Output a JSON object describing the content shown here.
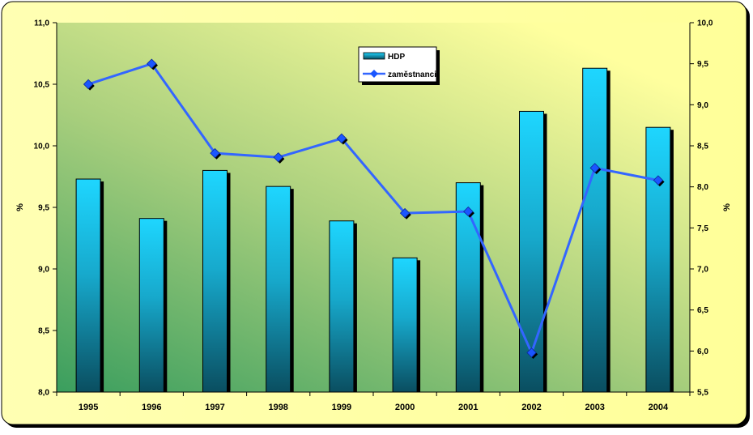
{
  "chart_data": {
    "type": "bar+line",
    "categories": [
      "1995",
      "1996",
      "1997",
      "1998",
      "1999",
      "2000",
      "2001",
      "2002",
      "2003",
      "2004"
    ],
    "series": [
      {
        "name": "HDP",
        "type": "bar",
        "axis": "left",
        "values": [
          9.73,
          9.41,
          9.8,
          9.67,
          9.39,
          9.09,
          9.7,
          10.28,
          10.63,
          10.15
        ]
      },
      {
        "name": "zaměstnanci",
        "type": "line",
        "axis": "right",
        "values": [
          9.25,
          9.5,
          8.41,
          8.36,
          8.59,
          7.68,
          7.7,
          5.98,
          8.23,
          8.08
        ]
      }
    ],
    "ylabel": "%",
    "y2label": "%",
    "ylim": [
      8.0,
      11.0
    ],
    "y2lim": [
      5.5,
      10.0
    ],
    "yticks": [
      "8,0",
      "8,5",
      "9,0",
      "9,5",
      "10,0",
      "10,5",
      "11,0"
    ],
    "y2ticks": [
      "5,5",
      "6,0",
      "6,5",
      "7,0",
      "7,5",
      "8,0",
      "8,5",
      "9,0",
      "9,5",
      "10,0"
    ],
    "legend_position": "top-center",
    "colors": {
      "bar": "#18c6ee",
      "bar_dark": "#0e5266",
      "line": "#3366ff",
      "marker": "#1a56ff",
      "frame_bg": "#ffffa8"
    }
  }
}
